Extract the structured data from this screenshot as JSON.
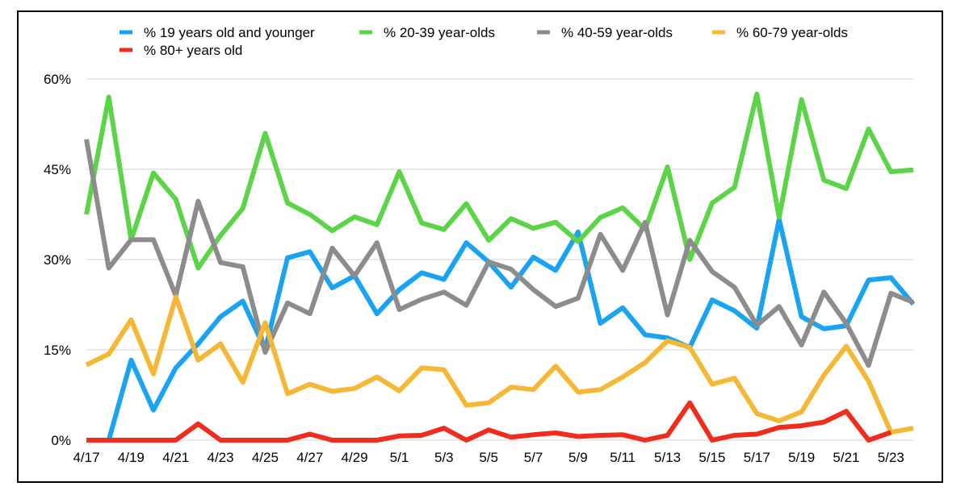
{
  "chart_data": {
    "type": "line",
    "title": "",
    "xlabel": "",
    "ylabel": "",
    "ylim": [
      0,
      60
    ],
    "y_ticks": [
      0,
      15,
      30,
      45,
      60
    ],
    "y_tick_labels": [
      "0%",
      "15%",
      "30%",
      "45%",
      "60%"
    ],
    "grid": true,
    "legend_position": "top",
    "x_tick_labels": [
      "4/17",
      "4/19",
      "4/21",
      "4/23",
      "4/25",
      "4/27",
      "4/29",
      "5/1",
      "5/3",
      "5/5",
      "5/7",
      "5/9",
      "5/11",
      "5/13",
      "5/15",
      "5/17",
      "5/19",
      "5/21",
      "5/23"
    ],
    "categories": [
      "4/17",
      "4/18",
      "4/19",
      "4/20",
      "4/21",
      "4/22",
      "4/23",
      "4/24",
      "4/25",
      "4/26",
      "4/27",
      "4/28",
      "4/29",
      "4/30",
      "5/1",
      "5/2",
      "5/3",
      "5/4",
      "5/5",
      "5/6",
      "5/7",
      "5/8",
      "5/9",
      "5/10",
      "5/11",
      "5/12",
      "5/13",
      "5/14",
      "5/15",
      "5/16",
      "5/17",
      "5/18",
      "5/19",
      "5/20",
      "5/21",
      "5/22",
      "5/23",
      "5/24"
    ],
    "series": [
      {
        "name": "% 19 years old and younger",
        "color": "#1aa3f0",
        "values": [
          0,
          0,
          13.3,
          5,
          12,
          16,
          20.5,
          23.1,
          15,
          30.3,
          31.3,
          25.3,
          27.3,
          21,
          25,
          27.8,
          26.7,
          32.8,
          29.6,
          25.4,
          30.4,
          28.2,
          34.6,
          19.4,
          22,
          17.5,
          17,
          15.4,
          23.3,
          21.5,
          18.6,
          36.7,
          20.5,
          18.5,
          19,
          26.6,
          27,
          22.6
        ]
      },
      {
        "name": "% 20-39 year-olds",
        "color": "#5bd447",
        "values": [
          37.5,
          57,
          33.3,
          44.4,
          40,
          28.6,
          34,
          38.5,
          51,
          39.4,
          37.5,
          34.8,
          37.1,
          35.8,
          44.6,
          36.1,
          35,
          39.3,
          33.2,
          36.8,
          35.2,
          36.2,
          33,
          37,
          38.6,
          35,
          45.4,
          30,
          39.4,
          42,
          57.5,
          37,
          56.6,
          43.2,
          41.8,
          51.7,
          44.6,
          44.9
        ]
      },
      {
        "name": "% 40-59 year-olds",
        "color": "#8c8c8c",
        "values": [
          50,
          28.6,
          33.3,
          33.3,
          24,
          39.7,
          29.5,
          28.8,
          14.6,
          22.8,
          21,
          31.9,
          27.3,
          32.8,
          21.7,
          23.4,
          24.6,
          22.4,
          29.6,
          28.4,
          25,
          22.2,
          23.6,
          34.2,
          28.2,
          36.2,
          20.8,
          33.2,
          28,
          25.4,
          19.1,
          22.2,
          15.8,
          24.6,
          19.4,
          12.4,
          24.4,
          22.9
        ]
      },
      {
        "name": "% 60-79 year-olds",
        "color": "#f5b836",
        "values": [
          12.5,
          14.3,
          20,
          11,
          23.8,
          13.3,
          16,
          9.6,
          19.5,
          7.7,
          9.3,
          8.1,
          8.6,
          10.5,
          8.2,
          12,
          11.7,
          5.8,
          6.2,
          8.8,
          8.4,
          12.3,
          8,
          8.4,
          10.5,
          12.9,
          16.5,
          15.4,
          9.3,
          10.3,
          4.4,
          3.2,
          4.7,
          10.8,
          15.6,
          9.8,
          1.3,
          2
        ]
      },
      {
        "name": "% 80+ years old",
        "color": "#f02c1c",
        "values": [
          0,
          0,
          0,
          0,
          0,
          2.7,
          0,
          0,
          0,
          0,
          1,
          0,
          0,
          0,
          0.7,
          0.8,
          2,
          0,
          1.7,
          0.5,
          0.9,
          1.2,
          0.6,
          0.8,
          0.9,
          0,
          0.8,
          6.2,
          0,
          0.8,
          1,
          2.1,
          2.4,
          3,
          4.8,
          0,
          1.3,
          null
        ]
      }
    ]
  }
}
